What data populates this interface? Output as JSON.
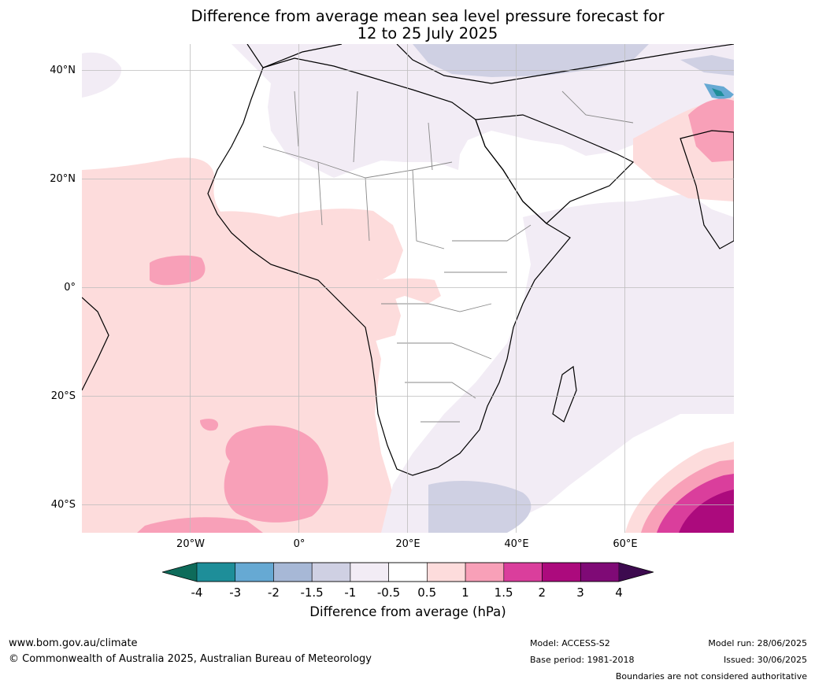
{
  "title_line1": "Difference from average mean sea level pressure forecast for",
  "title_line2": "12 to 25 July 2025",
  "lat_labels": [
    "40°N",
    "20°N",
    "0°",
    "20°S",
    "40°S"
  ],
  "lon_labels": [
    "20°W",
    "0°",
    "20°E",
    "40°E",
    "60°E"
  ],
  "colorbar": {
    "ticks": [
      "-4",
      "-3",
      "-2",
      "-1.5",
      "-1",
      "-0.5",
      "0.5",
      "1",
      "1.5",
      "2",
      "3",
      "4"
    ],
    "title": "Difference from average (hPa)",
    "low_extend_color": "#0e6b5a",
    "high_extend_color": "#3d0a4f",
    "colors": [
      "#1e8e99",
      "#66a9d3",
      "#a7b8d6",
      "#cfd0e3",
      "#f2ecf5",
      "#ffffff",
      "#fddcdc",
      "#f8a0b8",
      "#da3e9c",
      "#ac0a7d",
      "#7f0a76"
    ]
  },
  "footer": {
    "website": "www.bom.gov.au/climate",
    "copyright": "© Commonwealth of Australia 2025, Australian Bureau of Meteorology",
    "model": "Model: ACCESS-S2",
    "base_period": "Base period: 1981-2018",
    "model_run": "Model run: 28/06/2025",
    "issued": "Issued: 30/06/2025",
    "disclaimer": "Boundaries are not considered authoritative"
  }
}
